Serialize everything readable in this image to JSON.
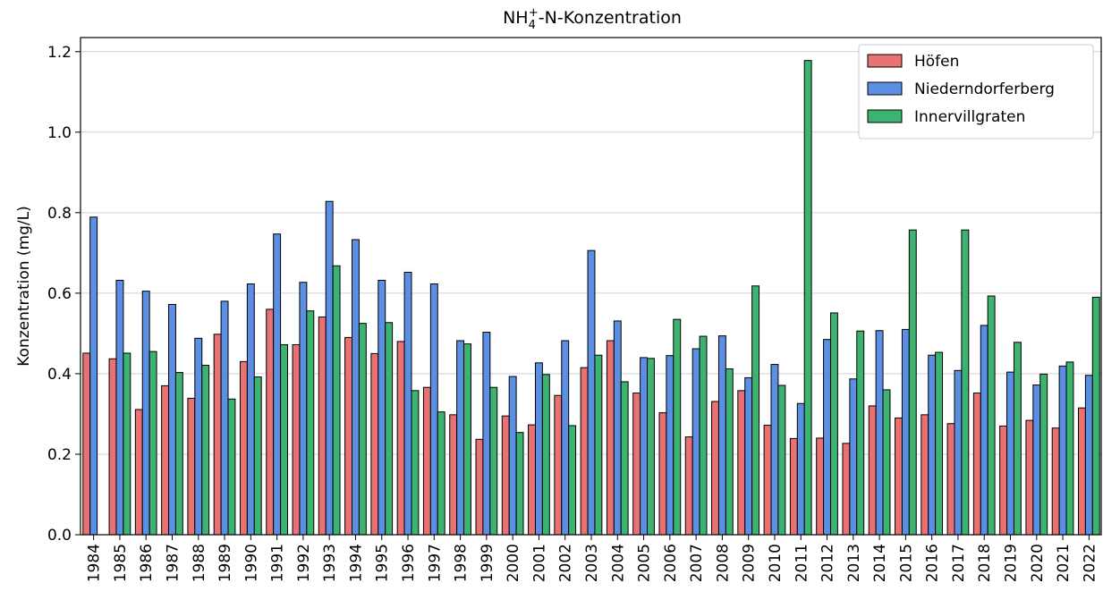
{
  "chart_data": {
    "type": "bar",
    "title_parts": [
      "NH",
      "4",
      "+",
      "-N-Konzentration"
    ],
    "ylabel": "Konzentration (mg/L)",
    "categories": [
      "1984",
      "1985",
      "1986",
      "1987",
      "1988",
      "1989",
      "1990",
      "1991",
      "1992",
      "1993",
      "1994",
      "1995",
      "1996",
      "1997",
      "1998",
      "1999",
      "2000",
      "2001",
      "2002",
      "2003",
      "2004",
      "2005",
      "2006",
      "2007",
      "2008",
      "2009",
      "2010",
      "2011",
      "2012",
      "2013",
      "2014",
      "2015",
      "2016",
      "2017",
      "2018",
      "2019",
      "2020",
      "2021",
      "2022"
    ],
    "series": [
      {
        "name": "Höfen",
        "color": "#e87272",
        "values": [
          0.451,
          0.437,
          0.311,
          0.37,
          0.339,
          0.498,
          0.43,
          0.56,
          0.472,
          0.541,
          0.49,
          0.45,
          0.48,
          0.366,
          0.298,
          0.237,
          0.295,
          0.273,
          0.346,
          0.415,
          0.482,
          0.352,
          0.303,
          0.243,
          0.331,
          0.358,
          0.272,
          0.239,
          0.24,
          0.227,
          0.32,
          0.29,
          0.298,
          0.276,
          0.352,
          0.27,
          0.284,
          0.265,
          0.315
        ]
      },
      {
        "name": "Niederndorferberg",
        "color": "#5b8fe3",
        "values": [
          0.789,
          0.632,
          0.605,
          0.572,
          0.488,
          0.58,
          0.623,
          0.747,
          0.627,
          0.828,
          0.733,
          0.632,
          0.652,
          0.623,
          0.482,
          0.503,
          0.393,
          0.427,
          0.482,
          0.706,
          0.531,
          0.44,
          0.445,
          0.462,
          0.494,
          0.39,
          0.423,
          0.326,
          0.485,
          0.387,
          0.507,
          0.51,
          0.446,
          0.408,
          0.52,
          0.404,
          0.372,
          0.419,
          0.396
        ]
      },
      {
        "name": "Innervillgraten",
        "color": "#3db371",
        "values": [
          null,
          0.451,
          0.455,
          0.403,
          0.421,
          0.337,
          0.392,
          0.472,
          0.556,
          0.668,
          0.525,
          0.527,
          0.358,
          0.305,
          0.474,
          0.366,
          0.254,
          0.398,
          0.271,
          0.446,
          0.38,
          0.438,
          0.535,
          0.493,
          0.412,
          0.618,
          0.371,
          1.178,
          0.551,
          0.506,
          0.36,
          0.757,
          0.453,
          0.757,
          0.593,
          0.478,
          0.399,
          0.429,
          0.59
        ]
      }
    ],
    "ylim": [
      0,
      1.235
    ],
    "yticks": [
      {
        "value": 0,
        "label": "0.0"
      },
      0.2,
      0.4,
      0.6,
      0.8,
      {
        "value": 1,
        "label": "1.0"
      },
      1.2
    ],
    "grid": true,
    "legend": "upper right"
  }
}
